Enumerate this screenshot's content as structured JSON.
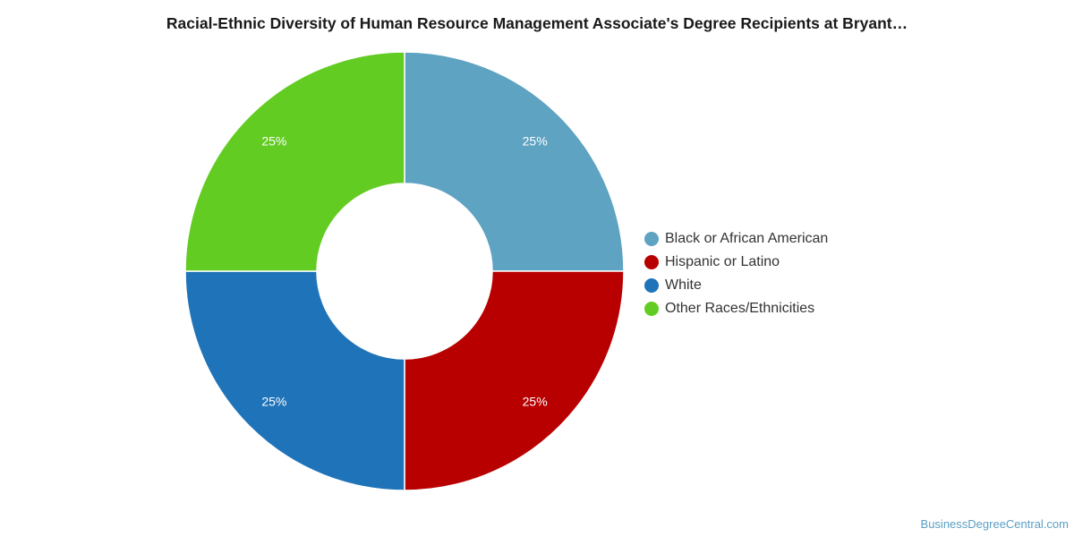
{
  "chart_data": {
    "type": "pie",
    "variant": "donut",
    "title": "Racial-Ethnic Diversity of Human Resource Management Associate's Degree Recipients at Bryant…",
    "categories": [
      "Black or African American",
      "Hispanic or Latino",
      "White",
      "Other Races/Ethnicities"
    ],
    "values": [
      25,
      25,
      25,
      25
    ],
    "value_labels": [
      "25%",
      "25%",
      "25%",
      "25%"
    ],
    "colors": [
      "#5ea3c1",
      "#b80000",
      "#1f73b9",
      "#62cc23"
    ],
    "legend_placement": "right"
  },
  "watermark": "BusinessDegreeCentral.com"
}
